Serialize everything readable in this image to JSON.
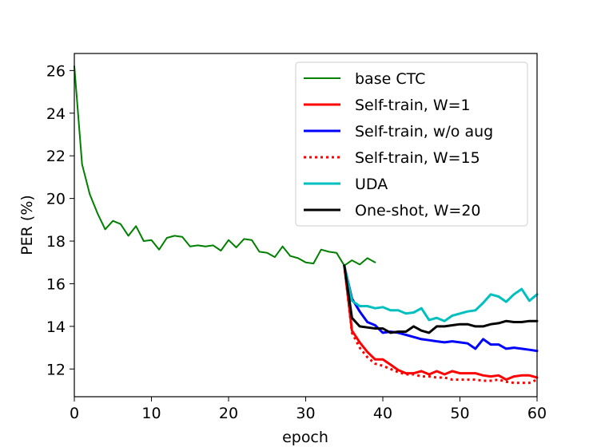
{
  "chart_data": {
    "type": "line",
    "title": "",
    "xlabel": "epoch",
    "ylabel": "PER (%)",
    "xlim": [
      0,
      60
    ],
    "ylim": [
      10.7,
      26.8
    ],
    "xticks": [
      0,
      10,
      20,
      30,
      40,
      50,
      60
    ],
    "yticks": [
      12,
      14,
      16,
      18,
      20,
      22,
      24,
      26
    ],
    "grid": false,
    "legend_position": "top-right",
    "series": [
      {
        "name": "base CTC",
        "color": "#008000",
        "style": "solid",
        "x": [
          0,
          1,
          2,
          3,
          4,
          5,
          6,
          7,
          8,
          9,
          10,
          11,
          12,
          13,
          14,
          15,
          16,
          17,
          18,
          19,
          20,
          21,
          22,
          23,
          24,
          25,
          26,
          27,
          28,
          29,
          30,
          31,
          32,
          33,
          34,
          35,
          36,
          37,
          38,
          39
        ],
        "y": [
          26.2,
          21.6,
          20.2,
          19.3,
          18.55,
          18.95,
          18.8,
          18.25,
          18.7,
          18.0,
          18.05,
          17.6,
          18.15,
          18.25,
          18.2,
          17.75,
          17.8,
          17.75,
          17.8,
          17.55,
          18.05,
          17.7,
          18.1,
          18.05,
          17.5,
          17.45,
          17.25,
          17.75,
          17.3,
          17.2,
          17.0,
          16.95,
          17.6,
          17.5,
          17.45,
          16.85,
          17.1,
          16.9,
          17.2,
          17.0
        ]
      },
      {
        "name": "Self-train, W=1",
        "color": "#ff0000",
        "style": "solid",
        "x": [
          35,
          36,
          37,
          38,
          39,
          40,
          41,
          42,
          43,
          44,
          45,
          46,
          47,
          48,
          49,
          50,
          51,
          52,
          53,
          54,
          55,
          56,
          57,
          58,
          59,
          60
        ],
        "y": [
          16.85,
          13.8,
          13.25,
          12.8,
          12.45,
          12.45,
          12.2,
          11.95,
          11.8,
          11.8,
          11.9,
          11.75,
          11.9,
          11.75,
          11.9,
          11.8,
          11.8,
          11.8,
          11.7,
          11.65,
          11.7,
          11.5,
          11.65,
          11.7,
          11.7,
          11.6
        ]
      },
      {
        "name": "Self-train, w/o aug",
        "color": "#0000ff",
        "style": "solid",
        "x": [
          35,
          36,
          37,
          38,
          39,
          40,
          41,
          42,
          43,
          44,
          45,
          46,
          47,
          48,
          49,
          50,
          51,
          52,
          53,
          54,
          55,
          56,
          57,
          58,
          59,
          60
        ],
        "y": [
          16.85,
          15.3,
          14.7,
          14.2,
          14.05,
          13.7,
          13.75,
          13.7,
          13.6,
          13.5,
          13.4,
          13.35,
          13.3,
          13.25,
          13.3,
          13.25,
          13.2,
          12.95,
          13.4,
          13.15,
          13.15,
          12.95,
          13.0,
          12.95,
          12.9,
          12.85
        ]
      },
      {
        "name": "Self-train, W=15",
        "color": "#ff0000",
        "style": "dotted",
        "x": [
          35,
          36,
          37,
          38,
          39,
          40,
          41,
          42,
          43,
          44,
          45,
          46,
          47,
          48,
          49,
          50,
          51,
          52,
          53,
          54,
          55,
          56,
          57,
          58,
          59,
          60
        ],
        "y": [
          16.85,
          13.7,
          13.0,
          12.55,
          12.25,
          12.15,
          12.0,
          11.85,
          11.75,
          11.75,
          11.65,
          11.65,
          11.6,
          11.6,
          11.5,
          11.5,
          11.5,
          11.5,
          11.45,
          11.45,
          11.5,
          11.4,
          11.35,
          11.35,
          11.35,
          11.5
        ]
      },
      {
        "name": "UDA",
        "color": "#00bfbf",
        "style": "solid",
        "x": [
          35,
          36,
          37,
          38,
          39,
          40,
          41,
          42,
          43,
          44,
          45,
          46,
          47,
          48,
          49,
          50,
          51,
          52,
          53,
          54,
          55,
          56,
          57,
          58,
          59,
          60
        ],
        "y": [
          16.85,
          15.2,
          14.95,
          14.95,
          14.85,
          14.9,
          14.75,
          14.75,
          14.6,
          14.65,
          14.85,
          14.3,
          14.4,
          14.25,
          14.5,
          14.6,
          14.7,
          14.75,
          15.1,
          15.5,
          15.4,
          15.15,
          15.5,
          15.75,
          15.2,
          15.5
        ]
      },
      {
        "name": "One-shot, W=20",
        "color": "#000000",
        "style": "solid",
        "x": [
          35,
          36,
          37,
          38,
          39,
          40,
          41,
          42,
          43,
          44,
          45,
          46,
          47,
          48,
          49,
          50,
          51,
          52,
          53,
          54,
          55,
          56,
          57,
          58,
          59,
          60
        ],
        "y": [
          16.85,
          14.4,
          14.0,
          13.95,
          13.9,
          13.9,
          13.7,
          13.75,
          13.75,
          14.0,
          13.8,
          13.7,
          14.0,
          14.0,
          14.05,
          14.1,
          14.1,
          14.0,
          14.0,
          14.1,
          14.15,
          14.25,
          14.2,
          14.2,
          14.25,
          14.25
        ]
      }
    ]
  }
}
